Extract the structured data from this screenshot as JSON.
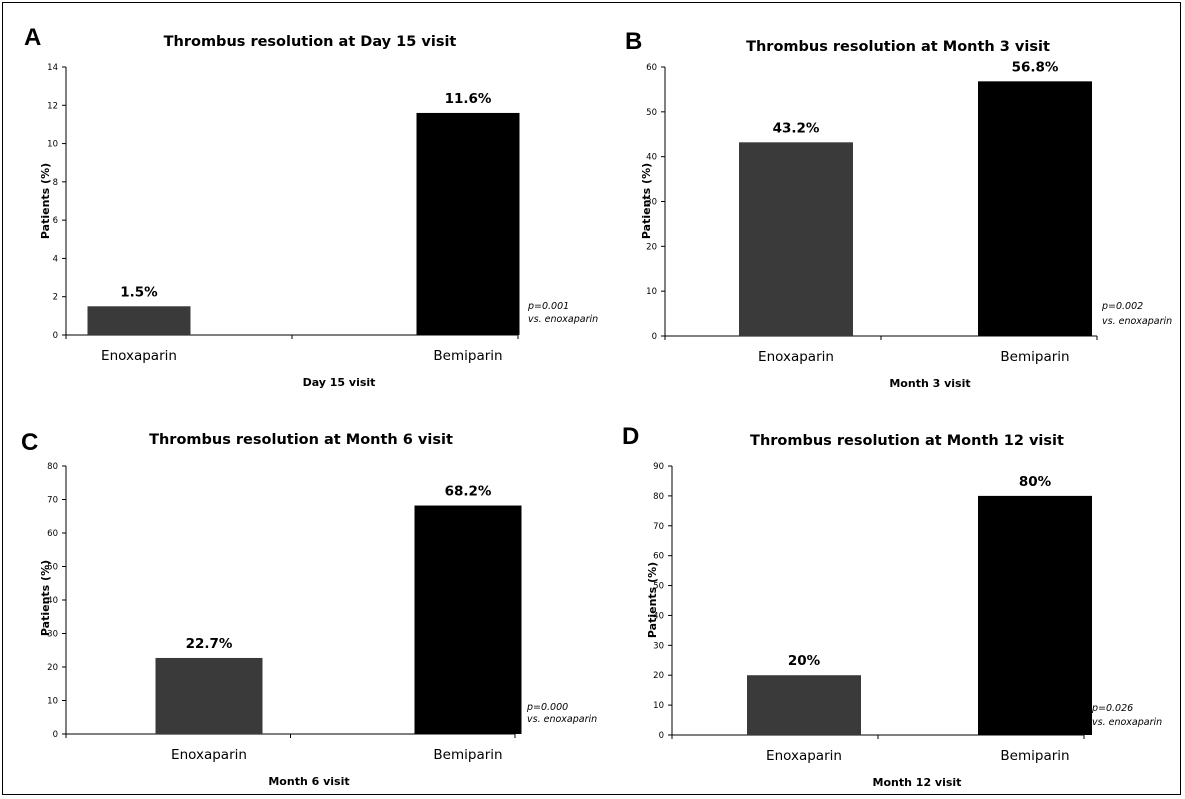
{
  "chart_data": [
    {
      "panel_letter": "A",
      "type": "bar",
      "title": "Thrombus resolution at Day 15 visit",
      "categories": [
        "Enoxaparin",
        "Bemiparin"
      ],
      "values": [
        1.5,
        11.6
      ],
      "data_labels": [
        "1.5%",
        "11.6%"
      ],
      "xlabel": "Day 15 visit",
      "ylabel": "Patients (%)",
      "ylim": [
        0,
        14
      ],
      "yticks": [
        0,
        2,
        4,
        6,
        8,
        10,
        12,
        14
      ],
      "bar_colors": [
        "#3a3a3a",
        "#000000"
      ],
      "annotation": [
        "p=0.001",
        "vs. enoxaparin"
      ],
      "grid": false
    },
    {
      "panel_letter": "B",
      "type": "bar",
      "title": "Thrombus resolution at Month 3 visit",
      "categories": [
        "Enoxaparin",
        "Bemiparin"
      ],
      "values": [
        43.2,
        56.8
      ],
      "data_labels": [
        "43.2%",
        "56.8%"
      ],
      "xlabel": "Month 3 visit",
      "ylabel": "Patients (%)",
      "ylim": [
        0,
        60
      ],
      "yticks": [
        0,
        10,
        20,
        30,
        40,
        50,
        60
      ],
      "bar_colors": [
        "#3a3a3a",
        "#000000"
      ],
      "annotation": [
        "p=0.002",
        "vs. enoxaparin"
      ],
      "grid": false
    },
    {
      "panel_letter": "C",
      "type": "bar",
      "title": "Thrombus resolution at Month 6 visit",
      "categories": [
        "Enoxaparin",
        "Bemiparin"
      ],
      "values": [
        22.7,
        68.2
      ],
      "data_labels": [
        "22.7%",
        "68.2%"
      ],
      "xlabel": "Month 6 visit",
      "ylabel": "Patients (%)",
      "ylim": [
        0,
        80
      ],
      "yticks": [
        0,
        10,
        20,
        30,
        40,
        50,
        60,
        70,
        80
      ],
      "bar_colors": [
        "#3a3a3a",
        "#000000"
      ],
      "annotation": [
        "p=0.000",
        "vs. enoxaparin"
      ],
      "grid": false
    },
    {
      "panel_letter": "D",
      "type": "bar",
      "title": "Thrombus resolution at Month 12 visit",
      "categories": [
        "Enoxaparin",
        "Bemiparin"
      ],
      "values": [
        20,
        80
      ],
      "data_labels": [
        "20%",
        "80%"
      ],
      "xlabel": "Month 12 visit",
      "ylabel": "Patients (%)",
      "ylim": [
        0,
        90
      ],
      "yticks": [
        0,
        10,
        20,
        30,
        40,
        50,
        60,
        70,
        80,
        90
      ],
      "bar_colors": [
        "#3a3a3a",
        "#000000"
      ],
      "annotation": [
        "p=0.026",
        "vs. enoxaparin"
      ],
      "grid": false
    }
  ]
}
